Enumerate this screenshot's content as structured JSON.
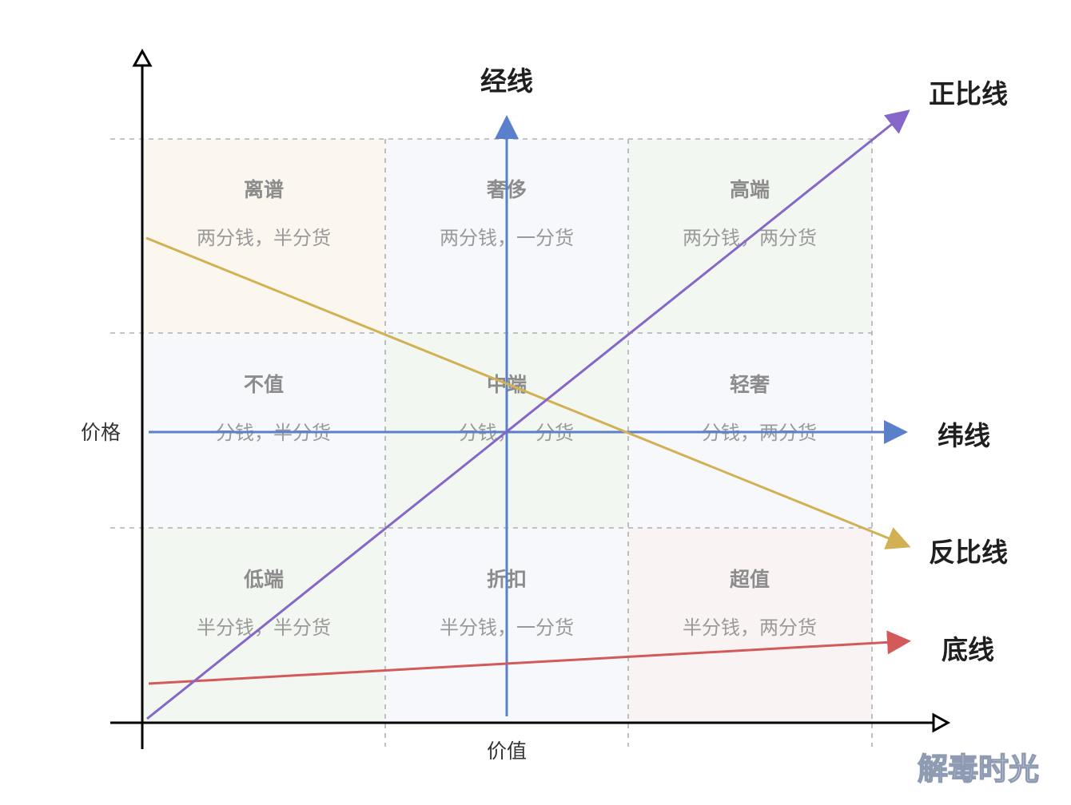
{
  "colors": {
    "cell_fills": [
      "#fbf7ee",
      "#f6f8fb",
      "#f3f7f1",
      "#f6f8fb",
      "#f3f7f1",
      "#f6f8fb",
      "#f3f7f1",
      "#f6f8fb",
      "#faf3f3"
    ],
    "grid": "#b0b0b0",
    "axis": "#000000",
    "jingxian": "#5a7fcb",
    "weixian": "#5a7fcb",
    "zhengbixian": "#8667c9",
    "fanbixian": "#d2b155",
    "dixian": "#d45a5a"
  },
  "axes": {
    "y_label": "价格",
    "x_label": "价值"
  },
  "cells": [
    {
      "title": "离谱",
      "subtitle": "两分钱，半分货"
    },
    {
      "title": "奢侈",
      "subtitle": "两分钱，一分货"
    },
    {
      "title": "高端",
      "subtitle": "两分钱，两分货"
    },
    {
      "title": "不值",
      "subtitle": "一分钱，半分货"
    },
    {
      "title": "中端",
      "subtitle": "一分钱，一分货"
    },
    {
      "title": "轻奢",
      "subtitle": "一分钱，两分货"
    },
    {
      "title": "低端",
      "subtitle": "半分钱，半分货"
    },
    {
      "title": "折扣",
      "subtitle": "半分钱，一分货"
    },
    {
      "title": "超值",
      "subtitle": "半分钱，两分货"
    }
  ],
  "lines": {
    "jingxian": "经线",
    "weixian": "纬线",
    "zhengbixian": "正比线",
    "fanbixian": "反比线",
    "dixian": "底线"
  },
  "watermark": "解毒时光"
}
